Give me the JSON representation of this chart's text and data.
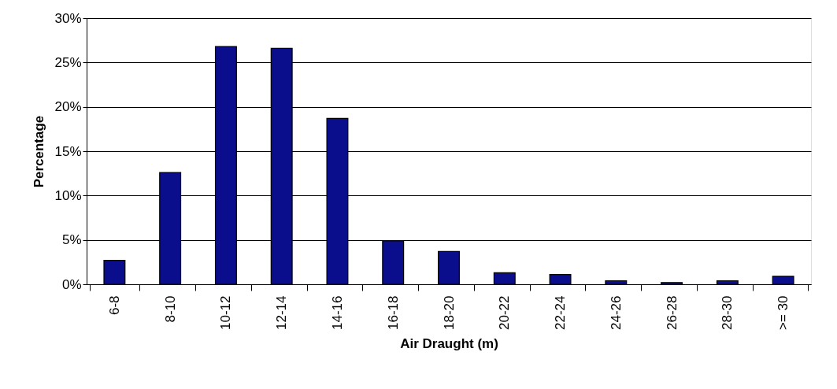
{
  "chart_data": {
    "type": "bar",
    "xlabel": "Air Draught (m)",
    "ylabel": "Percentage",
    "categories": [
      "6-8",
      "8-10",
      "10-12",
      "12-14",
      "14-16",
      "16-18",
      "18-20",
      "20-22",
      "22-24",
      "24-26",
      "26-28",
      "28-30",
      ">= 30"
    ],
    "values": [
      2.7,
      12.6,
      26.8,
      26.6,
      18.7,
      4.9,
      3.7,
      1.3,
      1.1,
      0.4,
      0.2,
      0.4,
      0.9
    ],
    "color": "#0a0e8c",
    "ylim": [
      0,
      30
    ],
    "yticks": [
      {
        "value": 0,
        "label": "0%"
      },
      {
        "value": 5,
        "label": "5%"
      },
      {
        "value": 10,
        "label": "10%"
      },
      {
        "value": 15,
        "label": "15%"
      },
      {
        "value": 20,
        "label": "20%"
      },
      {
        "value": 25,
        "label": "25%"
      },
      {
        "value": 30,
        "label": "30%"
      }
    ],
    "grid": "y"
  }
}
